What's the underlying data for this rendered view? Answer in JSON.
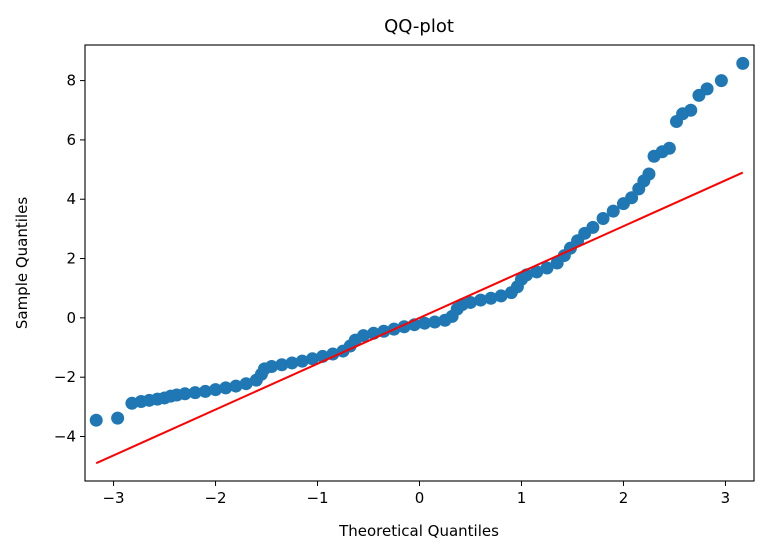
{
  "chart_data": {
    "type": "scatter",
    "title": "QQ-plot",
    "xlabel": "Theoretical Quantiles",
    "ylabel": "Sample Quantiles",
    "xlim": [
      -3.28,
      3.28
    ],
    "ylim": [
      -5.5,
      9.2
    ],
    "xticks": [
      -3,
      -2,
      -1,
      0,
      1,
      2,
      3
    ],
    "xtick_labels": [
      "−3",
      "−2",
      "−1",
      "0",
      "1",
      "2",
      "3"
    ],
    "yticks": [
      -4,
      -2,
      0,
      2,
      4,
      6,
      8
    ],
    "ytick_labels": [
      "−4",
      "−2",
      "0",
      "2",
      "4",
      "6",
      "8"
    ],
    "grid": false,
    "point_color": "#1f77b4",
    "line_color": "#ff0000",
    "reference_line": {
      "x": [
        -3.17,
        3.17
      ],
      "y": [
        -4.9,
        4.9
      ]
    },
    "series": [
      {
        "points": [
          [
            -3.17,
            -3.45
          ],
          [
            -2.96,
            -3.38
          ],
          [
            -2.82,
            -2.88
          ],
          [
            -2.73,
            -2.82
          ],
          [
            -2.65,
            -2.78
          ],
          [
            -2.57,
            -2.74
          ],
          [
            -2.5,
            -2.7
          ],
          [
            -2.44,
            -2.64
          ],
          [
            -2.38,
            -2.6
          ],
          [
            -2.3,
            -2.56
          ],
          [
            -2.2,
            -2.52
          ],
          [
            -2.1,
            -2.48
          ],
          [
            -2.0,
            -2.42
          ],
          [
            -1.9,
            -2.36
          ],
          [
            -1.8,
            -2.3
          ],
          [
            -1.7,
            -2.22
          ],
          [
            -1.6,
            -2.1
          ],
          [
            -1.55,
            -1.9
          ],
          [
            -1.52,
            -1.72
          ],
          [
            -1.45,
            -1.64
          ],
          [
            -1.35,
            -1.58
          ],
          [
            -1.25,
            -1.52
          ],
          [
            -1.15,
            -1.46
          ],
          [
            -1.05,
            -1.38
          ],
          [
            -0.95,
            -1.3
          ],
          [
            -0.85,
            -1.22
          ],
          [
            -0.75,
            -1.12
          ],
          [
            -0.68,
            -0.95
          ],
          [
            -0.63,
            -0.75
          ],
          [
            -0.55,
            -0.6
          ],
          [
            -0.45,
            -0.52
          ],
          [
            -0.35,
            -0.45
          ],
          [
            -0.25,
            -0.38
          ],
          [
            -0.15,
            -0.3
          ],
          [
            -0.05,
            -0.23
          ],
          [
            0.05,
            -0.18
          ],
          [
            0.15,
            -0.14
          ],
          [
            0.25,
            -0.08
          ],
          [
            0.32,
            0.05
          ],
          [
            0.37,
            0.3
          ],
          [
            0.42,
            0.45
          ],
          [
            0.5,
            0.52
          ],
          [
            0.6,
            0.6
          ],
          [
            0.7,
            0.66
          ],
          [
            0.8,
            0.74
          ],
          [
            0.9,
            0.85
          ],
          [
            0.96,
            1.05
          ],
          [
            1.0,
            1.3
          ],
          [
            1.05,
            1.45
          ],
          [
            1.15,
            1.55
          ],
          [
            1.25,
            1.68
          ],
          [
            1.35,
            1.85
          ],
          [
            1.42,
            2.1
          ],
          [
            1.48,
            2.35
          ],
          [
            1.55,
            2.6
          ],
          [
            1.62,
            2.85
          ],
          [
            1.7,
            3.05
          ],
          [
            1.8,
            3.35
          ],
          [
            1.9,
            3.6
          ],
          [
            2.0,
            3.85
          ],
          [
            2.08,
            4.05
          ],
          [
            2.15,
            4.35
          ],
          [
            2.2,
            4.62
          ],
          [
            2.25,
            4.85
          ],
          [
            2.3,
            5.45
          ],
          [
            2.38,
            5.6
          ],
          [
            2.45,
            5.72
          ],
          [
            2.52,
            6.62
          ],
          [
            2.58,
            6.88
          ],
          [
            2.66,
            7.0
          ],
          [
            2.74,
            7.5
          ],
          [
            2.82,
            7.72
          ],
          [
            2.96,
            8.0
          ],
          [
            3.17,
            8.58
          ]
        ]
      }
    ]
  }
}
